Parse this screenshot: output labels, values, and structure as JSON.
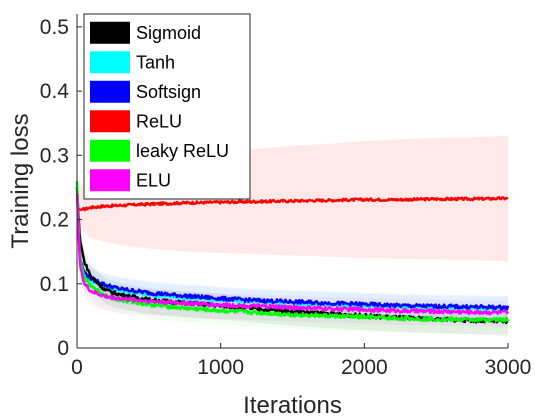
{
  "chart_data": {
    "type": "line",
    "xlabel": "Iterations",
    "ylabel": "Training loss",
    "xlim": [
      0,
      3000
    ],
    "ylim": [
      0,
      0.52
    ],
    "xticks": [
      0,
      1000,
      2000,
      3000
    ],
    "xtick_labels": [
      "0",
      "1000",
      "2000",
      "3000"
    ],
    "yticks": [
      0,
      0.1,
      0.2,
      0.3,
      0.4,
      0.5
    ],
    "ytick_labels": [
      "0",
      "0.1",
      "0.2",
      "0.3",
      "0.4",
      "0.5"
    ],
    "grid": false,
    "legend_position": "top-left",
    "x": [
      0,
      20,
      50,
      100,
      200,
      300,
      500,
      750,
      1000,
      1250,
      1500,
      1750,
      2000,
      2250,
      2500,
      2750,
      3000
    ],
    "series": [
      {
        "name": "Sigmoid",
        "color": "#000000",
        "values": [
          0.25,
          0.17,
          0.135,
          0.11,
          0.09,
          0.083,
          0.075,
          0.07,
          0.066,
          0.061,
          0.057,
          0.053,
          0.05,
          0.047,
          0.045,
          0.043,
          0.041
        ]
      },
      {
        "name": "Tanh",
        "color": "#00ffff",
        "values": [
          0.24,
          0.14,
          0.115,
          0.105,
          0.095,
          0.09,
          0.083,
          0.078,
          0.075,
          0.072,
          0.07,
          0.068,
          0.066,
          0.064,
          0.063,
          0.062,
          0.061
        ]
      },
      {
        "name": "Softsign",
        "color": "#0000ff",
        "values": [
          0.25,
          0.14,
          0.118,
          0.108,
          0.098,
          0.092,
          0.086,
          0.081,
          0.077,
          0.074,
          0.072,
          0.07,
          0.068,
          0.066,
          0.065,
          0.064,
          0.063
        ]
      },
      {
        "name": "ReLU",
        "color": "#ff0000",
        "values": [
          0.22,
          0.215,
          0.216,
          0.219,
          0.221,
          0.222,
          0.224,
          0.226,
          0.227,
          0.228,
          0.229,
          0.23,
          0.231,
          0.231,
          0.232,
          0.232,
          0.233
        ],
        "band_lower": [
          0.2,
          0.19,
          0.18,
          0.17,
          0.165,
          0.16,
          0.155,
          0.15,
          0.148,
          0.146,
          0.144,
          0.142,
          0.14,
          0.139,
          0.138,
          0.137,
          0.135
        ],
        "band_upper": [
          0.24,
          0.25,
          0.26,
          0.27,
          0.28,
          0.285,
          0.29,
          0.298,
          0.305,
          0.31,
          0.315,
          0.318,
          0.322,
          0.325,
          0.327,
          0.328,
          0.33
        ]
      },
      {
        "name": "leaky ReLU",
        "color": "#00ff00",
        "values": [
          0.26,
          0.14,
          0.11,
          0.095,
          0.082,
          0.075,
          0.068,
          0.062,
          0.058,
          0.055,
          0.052,
          0.05,
          0.048,
          0.046,
          0.045,
          0.044,
          0.044
        ]
      },
      {
        "name": "ELU",
        "color": "#ff00ff",
        "values": [
          0.24,
          0.13,
          0.1,
          0.088,
          0.08,
          0.077,
          0.073,
          0.07,
          0.067,
          0.065,
          0.063,
          0.061,
          0.06,
          0.058,
          0.057,
          0.056,
          0.055
        ]
      }
    ]
  }
}
